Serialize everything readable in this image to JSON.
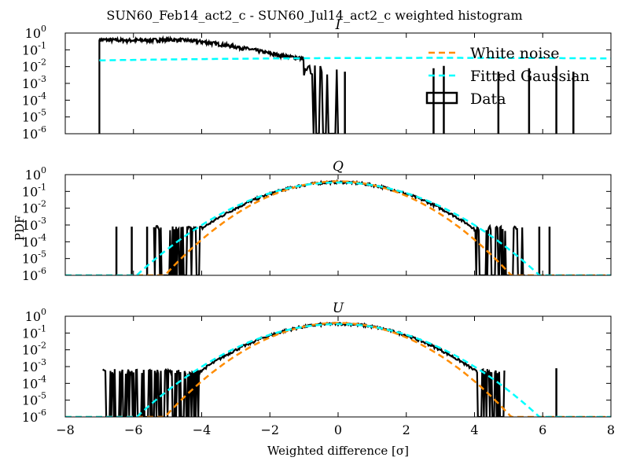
{
  "figure": {
    "title": "SUN60_Feb14_act2_c - SUN60_Jul14_act2_c weighted histogram",
    "xlabel": "Weighted difference [σ]",
    "ylabel": "PDF"
  },
  "legend": {
    "placement": "top-right of first panel",
    "entries": [
      {
        "label": "White noise",
        "style": "dashed",
        "color": "#ff8c00"
      },
      {
        "label": "Fitted Gaussian",
        "style": "dashed",
        "color": "#00ffff"
      },
      {
        "label": "Data",
        "style": "box",
        "color": "#000000"
      }
    ]
  },
  "chart_data": [
    {
      "type": "line",
      "title": "I",
      "xlim": [
        -8,
        8
      ],
      "ylim_log10": [
        -6,
        0
      ],
      "yscale": "log",
      "xticks": [
        "−8",
        "−6",
        "−4",
        "−2",
        "0",
        "2",
        "4",
        "6",
        "8"
      ],
      "yticks": [
        {
          "base": "10",
          "exp": "0"
        },
        {
          "base": "10",
          "exp": "-1"
        },
        {
          "base": "10",
          "exp": "-2"
        },
        {
          "base": "10",
          "exp": "-3"
        },
        {
          "base": "10",
          "exp": "-4"
        },
        {
          "base": "10",
          "exp": "-5"
        },
        {
          "base": "10",
          "exp": "-6"
        }
      ],
      "series": [
        {
          "name": "White noise",
          "mean": 0,
          "sigma": 1,
          "color": "#ff8c00",
          "visible": false
        },
        {
          "name": "Fitted Gaussian",
          "mean": 3.0,
          "sigma": 12.0,
          "color": "#00ffff"
        },
        {
          "name": "Data",
          "color": "#000000",
          "x": [
            -7.0,
            -6.5,
            -6.0,
            -5.5,
            -5.0,
            -4.5,
            -4.0,
            -3.5,
            -3.0,
            -2.5,
            -2.0,
            -1.5,
            -1.0
          ],
          "y": [
            0.4,
            0.38,
            0.37,
            0.38,
            0.4,
            0.38,
            0.3,
            0.22,
            0.15,
            0.1,
            0.06,
            0.04,
            0.03
          ]
        }
      ],
      "isolated_spikes_x": [
        0.2,
        2.8,
        3.1,
        4.7,
        5.6,
        6.4,
        6.9
      ]
    },
    {
      "type": "line",
      "title": "Q",
      "xlim": [
        -8,
        8
      ],
      "ylim_log10": [
        -6,
        0
      ],
      "yscale": "log",
      "xticks": [
        "−8",
        "−6",
        "−4",
        "−2",
        "0",
        "2",
        "4",
        "6",
        "8"
      ],
      "yticks": [
        {
          "base": "10",
          "exp": "0"
        },
        {
          "base": "10",
          "exp": "-1"
        },
        {
          "base": "10",
          "exp": "-2"
        },
        {
          "base": "10",
          "exp": "-3"
        },
        {
          "base": "10",
          "exp": "-4"
        },
        {
          "base": "10",
          "exp": "-5"
        },
        {
          "base": "10",
          "exp": "-6"
        }
      ],
      "series": [
        {
          "name": "White noise",
          "mean": 0,
          "sigma": 1.0,
          "color": "#ff8c00"
        },
        {
          "name": "Fitted Gaussian",
          "mean": 0,
          "sigma": 1.17,
          "color": "#00ffff"
        },
        {
          "name": "Data",
          "color": "#000000",
          "mean": 0,
          "sigma": 1.12,
          "floor_log10": -3.2,
          "range": [
            -5.4,
            5.5
          ]
        }
      ],
      "isolated_spikes_x": [
        -6.5,
        -6.05,
        -5.6,
        5.9,
        6.2
      ]
    },
    {
      "type": "line",
      "title": "U",
      "xlim": [
        -8,
        8
      ],
      "ylim_log10": [
        -6,
        0
      ],
      "yscale": "log",
      "xticks": [
        "−8",
        "−6",
        "−4",
        "−2",
        "0",
        "2",
        "4",
        "6",
        "8"
      ],
      "yticks": [
        {
          "base": "10",
          "exp": "0"
        },
        {
          "base": "10",
          "exp": "-1"
        },
        {
          "base": "10",
          "exp": "-2"
        },
        {
          "base": "10",
          "exp": "-3"
        },
        {
          "base": "10",
          "exp": "-4"
        },
        {
          "base": "10",
          "exp": "-5"
        },
        {
          "base": "10",
          "exp": "-6"
        }
      ],
      "series": [
        {
          "name": "White noise",
          "mean": 0,
          "sigma": 1.0,
          "color": "#ff8c00"
        },
        {
          "name": "Fitted Gaussian",
          "mean": 0,
          "sigma": 1.17,
          "color": "#00ffff"
        },
        {
          "name": "Data",
          "color": "#000000",
          "mean": 0,
          "sigma": 1.12,
          "floor_log10": -3.3,
          "range": [
            -6.9,
            4.9
          ]
        }
      ],
      "isolated_spikes_x": [
        6.4
      ]
    }
  ]
}
